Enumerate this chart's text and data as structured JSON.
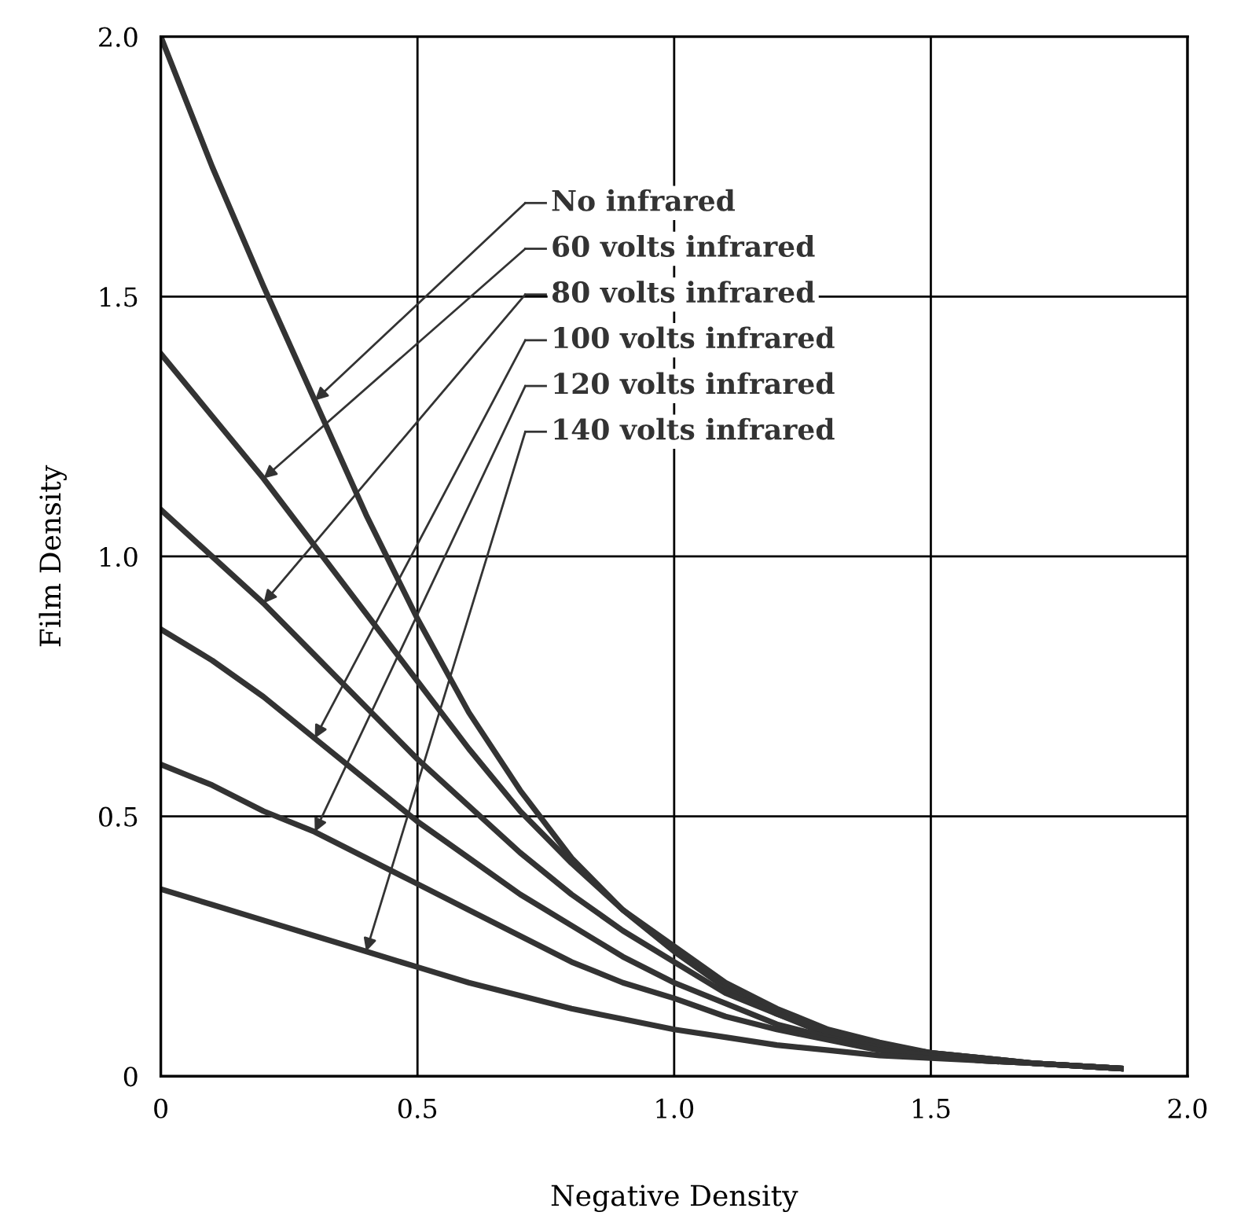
{
  "chart_data": {
    "type": "line",
    "xlabel": "Negative Density",
    "ylabel": "Film Density",
    "x": [
      0,
      0.1,
      0.2,
      0.3,
      0.4,
      0.5,
      0.6,
      0.7,
      0.8,
      0.9,
      1.0,
      1.1,
      1.2,
      1.3,
      1.4,
      1.5,
      1.6,
      1.7,
      1.87
    ],
    "series": [
      {
        "name": "No infrared",
        "color": "#333333",
        "values": [
          2.0,
          1.75,
          1.52,
          1.3,
          1.08,
          0.88,
          0.7,
          0.55,
          0.42,
          0.32,
          0.24,
          0.17,
          0.12,
          0.08,
          0.06,
          0.045,
          0.035,
          0.025,
          0.015
        ]
      },
      {
        "name": "60 volts infrared",
        "color": "#333333",
        "values": [
          1.39,
          1.27,
          1.15,
          1.02,
          0.89,
          0.76,
          0.63,
          0.51,
          0.41,
          0.32,
          0.25,
          0.18,
          0.13,
          0.09,
          0.065,
          0.045,
          0.035,
          0.025,
          0.015
        ]
      },
      {
        "name": "80 volts infrared",
        "color": "#333333",
        "values": [
          1.09,
          1.0,
          0.91,
          0.81,
          0.71,
          0.61,
          0.52,
          0.43,
          0.35,
          0.28,
          0.22,
          0.16,
          0.12,
          0.085,
          0.06,
          0.045,
          0.035,
          0.025,
          0.015
        ]
      },
      {
        "name": "100 volts infrared",
        "color": "#333333",
        "values": [
          0.86,
          0.8,
          0.73,
          0.65,
          0.57,
          0.49,
          0.42,
          0.35,
          0.29,
          0.23,
          0.18,
          0.14,
          0.1,
          0.075,
          0.055,
          0.04,
          0.03,
          0.025,
          0.015
        ]
      },
      {
        "name": "120 volts infrared",
        "color": "#333333",
        "values": [
          0.6,
          0.56,
          0.51,
          0.47,
          0.42,
          0.37,
          0.32,
          0.27,
          0.22,
          0.18,
          0.15,
          0.115,
          0.09,
          0.07,
          0.05,
          0.04,
          0.03,
          0.025,
          0.015
        ]
      },
      {
        "name": "140 volts infrared",
        "color": "#333333",
        "values": [
          0.36,
          0.33,
          0.3,
          0.27,
          0.24,
          0.21,
          0.18,
          0.155,
          0.13,
          0.11,
          0.09,
          0.075,
          0.06,
          0.05,
          0.04,
          0.035,
          0.03,
          0.025,
          0.015
        ]
      }
    ],
    "xlim": [
      0,
      2.0
    ],
    "ylim": [
      0,
      2.0
    ],
    "xticks": [
      0,
      0.5,
      {
        "value": 1,
        "label": "1.0"
      },
      1.5,
      {
        "value": 2,
        "label": "2.0"
      }
    ],
    "yticks": [
      0,
      0.5,
      {
        "value": 1,
        "label": "1.0"
      },
      1.5,
      {
        "value": 2,
        "label": "2.0"
      }
    ],
    "grid": true,
    "legend": "top",
    "marker": "none",
    "line_style": "solid"
  }
}
